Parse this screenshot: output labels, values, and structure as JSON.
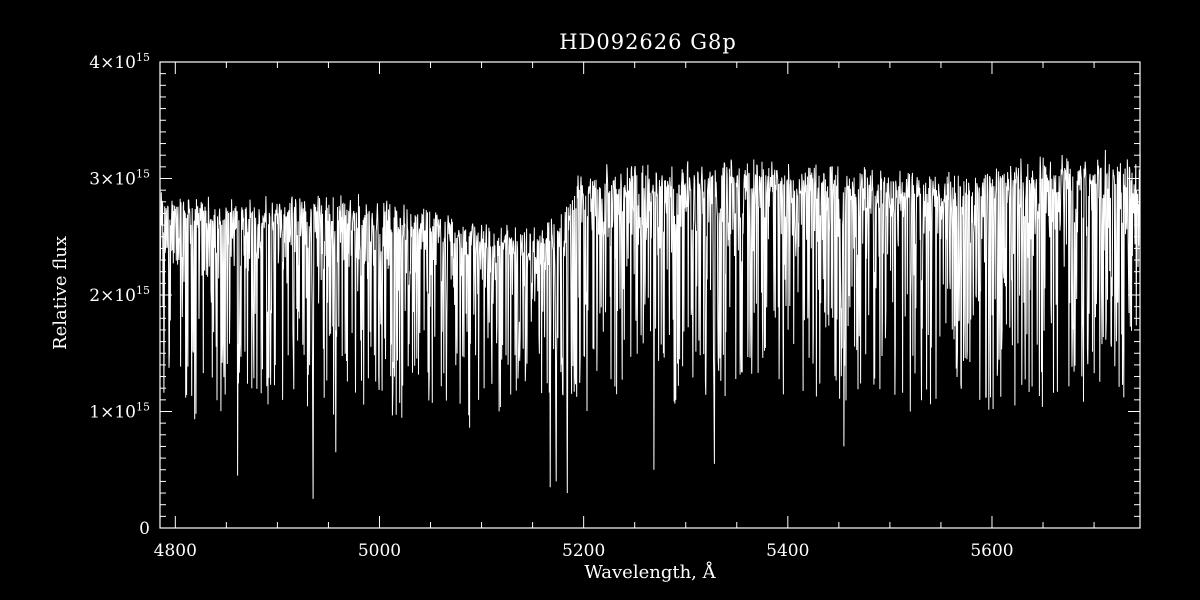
{
  "chart_data": {
    "type": "line",
    "title": "HD092626   G8p",
    "xlabel": "Wavelength, Å",
    "ylabel": "Relative flux",
    "xlim": [
      4785,
      5745
    ],
    "ylim": [
      0,
      4000000000000000.0
    ],
    "x_ticks": [
      {
        "value": 4800,
        "label": "4800"
      },
      {
        "value": 5000,
        "label": "5000"
      },
      {
        "value": 5200,
        "label": "5200"
      },
      {
        "value": 5400,
        "label": "5400"
      },
      {
        "value": 5600,
        "label": "5600"
      }
    ],
    "y_ticks": [
      {
        "value": 0,
        "mant": "0",
        "exp": ""
      },
      {
        "value": 1000000000000000.0,
        "mant": "1×10",
        "exp": "15"
      },
      {
        "value": 2000000000000000.0,
        "mant": "2×10",
        "exp": "15"
      },
      {
        "value": 3000000000000000.0,
        "mant": "3×10",
        "exp": "15"
      },
      {
        "value": 4000000000000000.0,
        "mant": "4×10",
        "exp": "15"
      }
    ],
    "grid": false,
    "colors": {
      "background": "#000000",
      "foreground": "#ffffff"
    },
    "series": [
      {
        "continuum": {
          "x": [
            4785,
            4800,
            4850,
            4900,
            4950,
            5000,
            5050,
            5100,
            5150,
            5180,
            5195,
            5250,
            5300,
            5350,
            5400,
            5450,
            5500,
            5550,
            5600,
            5650,
            5700,
            5745
          ],
          "y": [
            2750000000000000.0,
            2750000000000000.0,
            2700000000000000.0,
            2750000000000000.0,
            2750000000000000.0,
            2700000000000000.0,
            2650000000000000.0,
            2500000000000000.0,
            2500000000000000.0,
            2600000000000000.0,
            2950000000000000.0,
            3000000000000000.0,
            3000000000000000.0,
            3050000000000000.0,
            3000000000000000.0,
            3000000000000000.0,
            2950000000000000.0,
            2950000000000000.0,
            3000000000000000.0,
            3050000000000000.0,
            3100000000000000.0,
            3100000000000000.0
          ]
        },
        "absorption_lines": [
          {
            "x": 4861,
            "y": 450000000000000.0
          },
          {
            "x": 4935,
            "y": 250000000000000.0
          },
          {
            "x": 4957,
            "y": 650000000000000.0
          },
          {
            "x": 5167,
            "y": 350000000000000.0
          },
          {
            "x": 5173,
            "y": 400000000000000.0
          },
          {
            "x": 5184,
            "y": 300000000000000.0
          },
          {
            "x": 5269,
            "y": 500000000000000.0
          },
          {
            "x": 5328,
            "y": 550000000000000.0
          },
          {
            "x": 5455,
            "y": 700000000000000.0
          },
          {
            "x": 5520,
            "y": 1000000000000000.0
          },
          {
            "x": 5588,
            "y": 1100000000000000.0
          }
        ]
      }
    ]
  }
}
